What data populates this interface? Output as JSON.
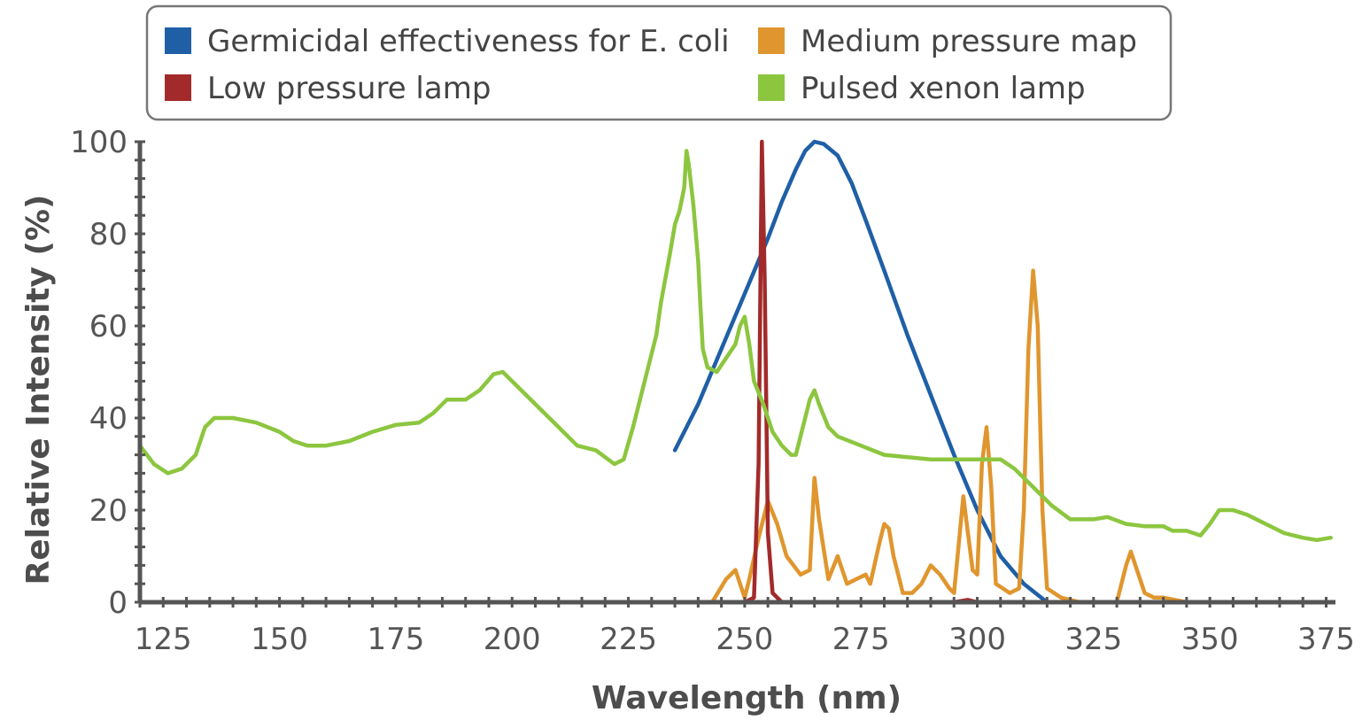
{
  "chart_data": {
    "type": "line",
    "xlabel": "Wavelength (nm)",
    "ylabel": "Relative Intensity (%)",
    "xlim": [
      120,
      377
    ],
    "ylim": [
      0,
      100
    ],
    "xticks": [
      125,
      150,
      175,
      200,
      225,
      250,
      275,
      300,
      325,
      350,
      375
    ],
    "yticks": [
      0,
      20,
      40,
      60,
      80,
      100
    ],
    "legend_position": "top",
    "grid": false,
    "series": [
      {
        "name": "Germicidal effectiveness for E. coli",
        "color": "#1f5fa6",
        "points": [
          [
            235,
            33
          ],
          [
            240,
            43
          ],
          [
            245,
            55
          ],
          [
            250,
            67
          ],
          [
            255,
            79
          ],
          [
            258,
            87
          ],
          [
            261,
            94
          ],
          [
            263,
            98
          ],
          [
            265,
            100
          ],
          [
            267,
            99.5
          ],
          [
            270,
            97
          ],
          [
            273,
            91
          ],
          [
            276,
            83
          ],
          [
            280,
            72
          ],
          [
            285,
            58
          ],
          [
            290,
            45
          ],
          [
            295,
            32
          ],
          [
            300,
            20
          ],
          [
            305,
            10
          ],
          [
            310,
            4
          ],
          [
            315,
            0
          ]
        ]
      },
      {
        "name": "Medium pressure map",
        "color": "#e0962e",
        "points": [
          [
            234,
            0
          ],
          [
            243,
            0
          ],
          [
            246,
            5
          ],
          [
            248,
            7
          ],
          [
            250,
            1
          ],
          [
            251,
            5
          ],
          [
            253,
            14
          ],
          [
            255,
            22
          ],
          [
            257,
            17
          ],
          [
            259,
            10
          ],
          [
            262,
            6
          ],
          [
            264,
            7
          ],
          [
            265,
            27
          ],
          [
            266,
            18
          ],
          [
            268,
            5
          ],
          [
            270,
            10
          ],
          [
            272,
            4
          ],
          [
            274,
            5
          ],
          [
            276,
            6
          ],
          [
            277,
            4
          ],
          [
            279,
            13
          ],
          [
            280,
            17
          ],
          [
            281,
            16
          ],
          [
            282,
            10
          ],
          [
            284,
            2
          ],
          [
            286,
            2
          ],
          [
            288,
            4
          ],
          [
            290,
            8
          ],
          [
            292,
            6
          ],
          [
            294,
            3
          ],
          [
            295,
            2
          ],
          [
            297,
            23
          ],
          [
            298,
            15
          ],
          [
            299,
            7
          ],
          [
            300,
            6
          ],
          [
            301,
            30
          ],
          [
            302,
            38
          ],
          [
            303,
            25
          ],
          [
            304,
            4
          ],
          [
            307,
            2
          ],
          [
            309,
            3
          ],
          [
            310,
            20
          ],
          [
            311,
            55
          ],
          [
            312,
            72
          ],
          [
            313,
            60
          ],
          [
            314,
            20
          ],
          [
            315,
            3
          ],
          [
            318,
            1
          ],
          [
            322,
            0
          ],
          [
            330,
            0
          ],
          [
            332,
            8
          ],
          [
            333,
            11
          ],
          [
            334,
            8
          ],
          [
            336,
            2
          ],
          [
            338,
            1
          ],
          [
            340,
            1
          ],
          [
            345,
            0
          ],
          [
            360,
            0
          ]
        ]
      },
      {
        "name": "Low pressure lamp",
        "color": "#a32a2a",
        "points": [
          [
            234,
            0
          ],
          [
            250,
            0
          ],
          [
            252,
            1
          ],
          [
            253,
            30
          ],
          [
            253.7,
            100
          ],
          [
            254.3,
            70
          ],
          [
            255,
            15
          ],
          [
            256,
            2
          ],
          [
            258,
            0
          ],
          [
            260,
            0
          ],
          [
            280,
            0
          ],
          [
            295,
            0
          ],
          [
            298,
            0.5
          ],
          [
            300,
            0
          ]
        ]
      },
      {
        "name": "Pulsed xenon lamp",
        "color": "#8cc63f",
        "points": [
          [
            120,
            34
          ],
          [
            123,
            30
          ],
          [
            126,
            28
          ],
          [
            129,
            29
          ],
          [
            132,
            32
          ],
          [
            134,
            38
          ],
          [
            136,
            40
          ],
          [
            140,
            40
          ],
          [
            145,
            39
          ],
          [
            150,
            37
          ],
          [
            153,
            35
          ],
          [
            156,
            34
          ],
          [
            160,
            34
          ],
          [
            165,
            35
          ],
          [
            170,
            37
          ],
          [
            175,
            38.5
          ],
          [
            180,
            39
          ],
          [
            183,
            41
          ],
          [
            186,
            44
          ],
          [
            190,
            44
          ],
          [
            193,
            46
          ],
          [
            196,
            49.5
          ],
          [
            198,
            50
          ],
          [
            201,
            47
          ],
          [
            205,
            43
          ],
          [
            210,
            38
          ],
          [
            214,
            34
          ],
          [
            218,
            33
          ],
          [
            222,
            30
          ],
          [
            224,
            31
          ],
          [
            226,
            38
          ],
          [
            229,
            50
          ],
          [
            231,
            58
          ],
          [
            232,
            65
          ],
          [
            234,
            76
          ],
          [
            235,
            82
          ],
          [
            236,
            85
          ],
          [
            237,
            90
          ],
          [
            237.5,
            98
          ],
          [
            238,
            95
          ],
          [
            239,
            86
          ],
          [
            240,
            74
          ],
          [
            240.5,
            64
          ],
          [
            241,
            55
          ],
          [
            242,
            51
          ],
          [
            244,
            50
          ],
          [
            246,
            53
          ],
          [
            248,
            56
          ],
          [
            249,
            60
          ],
          [
            250,
            62
          ],
          [
            251,
            56
          ],
          [
            252,
            48
          ],
          [
            254,
            43
          ],
          [
            256,
            37
          ],
          [
            258,
            34
          ],
          [
            260,
            32
          ],
          [
            261,
            32
          ],
          [
            262,
            36
          ],
          [
            263,
            40
          ],
          [
            264,
            44
          ],
          [
            265,
            46
          ],
          [
            266,
            43
          ],
          [
            268,
            38
          ],
          [
            270,
            36
          ],
          [
            275,
            34
          ],
          [
            280,
            32
          ],
          [
            290,
            31
          ],
          [
            300,
            31
          ],
          [
            305,
            31
          ],
          [
            308,
            29
          ],
          [
            312,
            25
          ],
          [
            316,
            21
          ],
          [
            320,
            18
          ],
          [
            325,
            18
          ],
          [
            328,
            18.5
          ],
          [
            332,
            17
          ],
          [
            336,
            16.5
          ],
          [
            340,
            16.5
          ],
          [
            342,
            15.5
          ],
          [
            345,
            15.5
          ],
          [
            348,
            14.5
          ],
          [
            350,
            17
          ],
          [
            352,
            20
          ],
          [
            355,
            20
          ],
          [
            358,
            19
          ],
          [
            362,
            17
          ],
          [
            366,
            15
          ],
          [
            370,
            14
          ],
          [
            373,
            13.5
          ],
          [
            376,
            14
          ]
        ]
      }
    ]
  }
}
